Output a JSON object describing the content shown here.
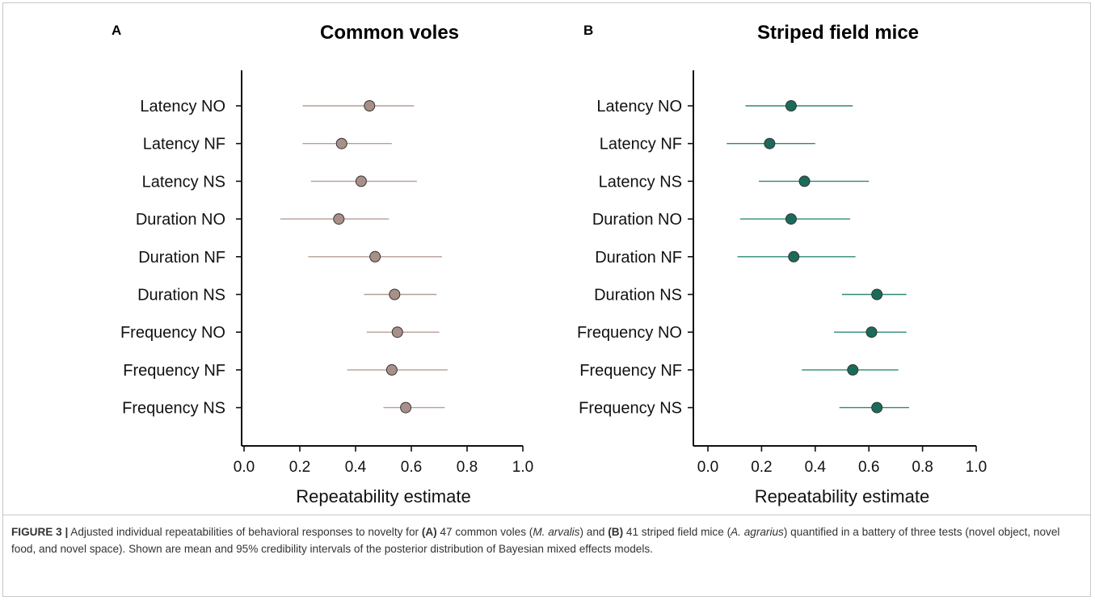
{
  "chart_data": [
    {
      "panel": "A",
      "type": "scatter",
      "title": "Common voles",
      "xlabel": "Repeatability estimate",
      "xlim": [
        0.0,
        1.0
      ],
      "xticks": [
        "0.0",
        "0.2",
        "0.4",
        "0.6",
        "0.8",
        "1.0"
      ],
      "categories": [
        "Latency NO",
        "Latency NF",
        "Latency NS",
        "Duration NO",
        "Duration NF",
        "Duration NS",
        "Frequency NO",
        "Frequency NF",
        "Frequency NS"
      ],
      "mean": [
        0.45,
        0.35,
        0.42,
        0.34,
        0.47,
        0.54,
        0.55,
        0.53,
        0.58
      ],
      "ci_low": [
        0.21,
        0.21,
        0.24,
        0.13,
        0.23,
        0.43,
        0.44,
        0.37,
        0.5
      ],
      "ci_high": [
        0.61,
        0.53,
        0.62,
        0.52,
        0.71,
        0.69,
        0.7,
        0.73,
        0.72
      ],
      "color": "#a89088",
      "line_color": "#b79e97"
    },
    {
      "panel": "B",
      "type": "scatter",
      "title": "Striped field mice",
      "xlabel": "Repeatability estimate",
      "xlim": [
        0.0,
        1.0
      ],
      "xticks": [
        "0.0",
        "0.2",
        "0.4",
        "0.6",
        "0.8",
        "1.0"
      ],
      "categories": [
        "Latency NO",
        "Latency NF",
        "Latency NS",
        "Duration NO",
        "Duration NF",
        "Duration NS",
        "Frequency NO",
        "Frequency NF",
        "Frequency NS"
      ],
      "mean": [
        0.31,
        0.23,
        0.36,
        0.31,
        0.32,
        0.63,
        0.61,
        0.54,
        0.63
      ],
      "ci_low": [
        0.14,
        0.07,
        0.19,
        0.12,
        0.11,
        0.5,
        0.47,
        0.35,
        0.49
      ],
      "ci_high": [
        0.54,
        0.4,
        0.6,
        0.53,
        0.55,
        0.74,
        0.74,
        0.71,
        0.75
      ],
      "color": "#1b6b5a",
      "line_color": "#2e8a74"
    }
  ],
  "caption": {
    "label": "FIGURE 3 |",
    "t1": " Adjusted individual repeatabilities of behavioral responses to novelty for ",
    "a": "(A)",
    "t2": " 47 common voles (",
    "sp1": "M. arvalis",
    "t3": ") and ",
    "b": "(B)",
    "t4": " 41 striped field mice (",
    "sp2": "A. agrarius",
    "t5": ") quantified in a battery of three tests (novel object, novel food, and novel space). Shown are mean and 95% credibility intervals of the posterior distribution of Bayesian mixed effects models."
  }
}
